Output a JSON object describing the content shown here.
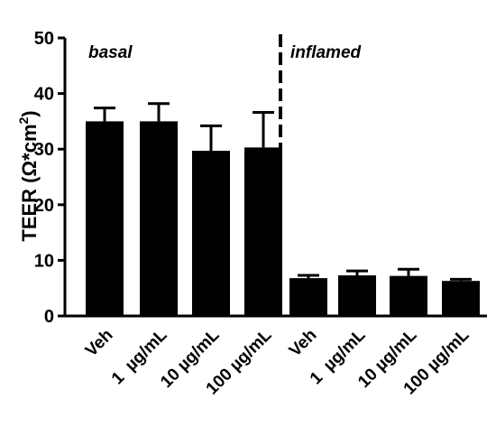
{
  "chart_data": {
    "type": "bar",
    "title": "",
    "xlabel": "",
    "ylabel": "TEER (Ω*cm²)",
    "ylabel_parts": {
      "main": "TEER (Ω*cm",
      "sup": "2",
      "close": ")"
    },
    "ylim": [
      0,
      50
    ],
    "yticks": [
      "0",
      "10",
      "20",
      "30",
      "40",
      "50"
    ],
    "ytick_values": [
      0,
      10,
      20,
      30,
      40,
      50
    ],
    "grid": false,
    "bar_color": "#000000",
    "categories": [
      "Veh",
      "1  µg/mL",
      "10 µg/mL",
      "100 µg/mL",
      "Veh",
      "1  µg/mL",
      "10 µg/mL",
      "100 µg/mL"
    ],
    "values": [
      35.0,
      35.0,
      29.7,
      30.3,
      6.8,
      7.3,
      7.2,
      6.3
    ],
    "error": [
      2.4,
      3.2,
      4.5,
      6.3,
      0.5,
      0.8,
      1.2,
      0.3
    ],
    "groups": [
      {
        "label": "basal",
        "indices": [
          0,
          1,
          2,
          3
        ]
      },
      {
        "label": "inflamed",
        "indices": [
          4,
          5,
          6,
          7
        ]
      }
    ],
    "group_separator": "dashed"
  }
}
